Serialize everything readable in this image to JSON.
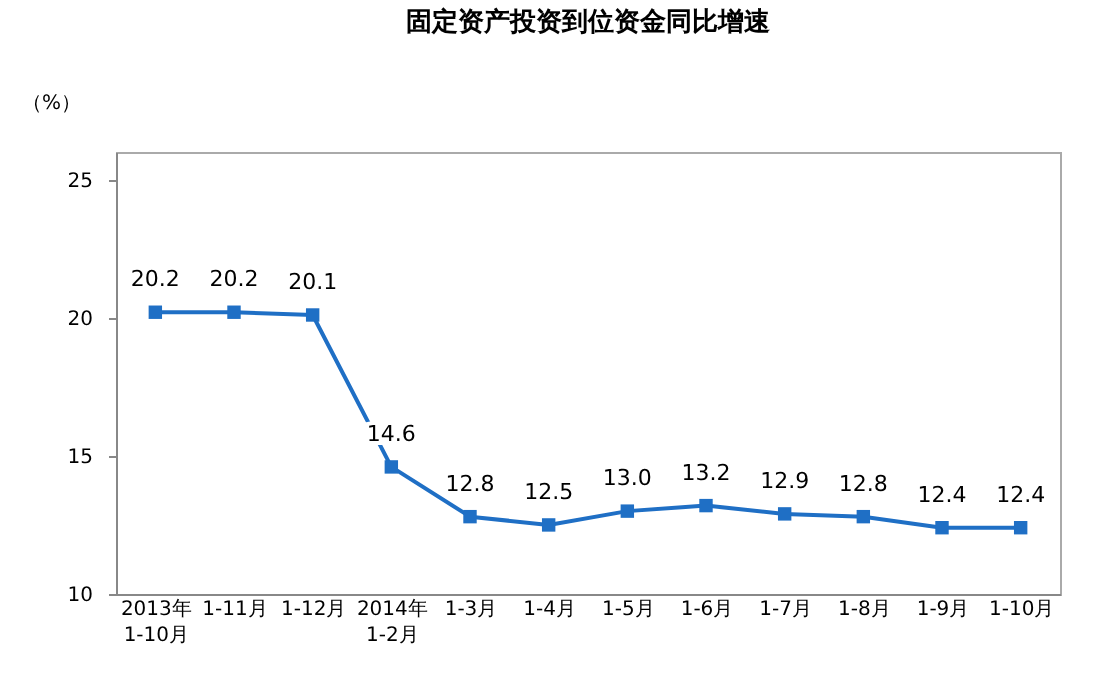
{
  "chart_data": {
    "type": "line",
    "title": "固定资产投资到位资金同比增速",
    "ylabel": "（%）",
    "categories": [
      "2013年\n1-10月",
      "1-11月",
      "1-12月",
      "2014年\n1-2月",
      "1-3月",
      "1-4月",
      "1-5月",
      "1-6月",
      "1-7月",
      "1-8月",
      "1-9月",
      "1-10月"
    ],
    "series": [
      {
        "color": "#1f6fc5",
        "values": [
          20.2,
          20.2,
          20.1,
          14.6,
          12.8,
          12.5,
          13.0,
          13.2,
          12.9,
          12.8,
          12.4,
          12.4
        ],
        "value_labels": [
          "20.2",
          "20.2",
          "20.1",
          "14.6",
          "12.8",
          "12.5",
          "13.0",
          "13.2",
          "12.9",
          "12.8",
          "12.4",
          "12.4"
        ]
      }
    ],
    "ylim": [
      10,
      26
    ],
    "yticks": [
      10,
      15,
      20,
      25
    ],
    "grid": false,
    "legend": false,
    "marker": "square",
    "line_style": "solid"
  }
}
